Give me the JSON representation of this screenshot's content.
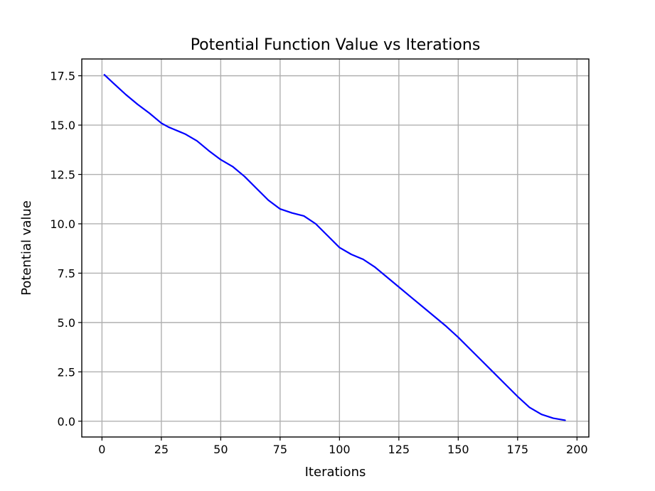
{
  "chart_data": {
    "type": "line",
    "title": "Potential Function Value vs Iterations",
    "xlabel": "Iterations",
    "ylabel": "Potential value",
    "xlim": [
      -8.5,
      205
    ],
    "ylim": [
      -0.8,
      18.35
    ],
    "xticks": [
      0,
      25,
      50,
      75,
      100,
      125,
      150,
      175,
      200
    ],
    "xtick_labels": [
      "0",
      "25",
      "50",
      "75",
      "100",
      "125",
      "150",
      "175",
      "200"
    ],
    "yticks": [
      0.0,
      2.5,
      5.0,
      7.5,
      10.0,
      12.5,
      15.0,
      17.5
    ],
    "ytick_labels": [
      "0.0",
      "2.5",
      "5.0",
      "7.5",
      "10.0",
      "12.5",
      "15.0",
      "17.5"
    ],
    "grid": true,
    "series": [
      {
        "color": "#0000ff",
        "x": [
          1,
          5,
          10,
          15,
          20,
          25,
          28,
          30,
          35,
          40,
          45,
          50,
          55,
          60,
          65,
          70,
          75,
          80,
          85,
          90,
          95,
          100,
          105,
          110,
          115,
          120,
          125,
          130,
          135,
          140,
          145,
          150,
          155,
          160,
          165,
          170,
          175,
          180,
          185,
          190,
          195
        ],
        "y": [
          17.55,
          17.1,
          16.55,
          16.05,
          15.6,
          15.1,
          14.9,
          14.8,
          14.55,
          14.2,
          13.7,
          13.25,
          12.9,
          12.4,
          11.8,
          11.2,
          10.75,
          10.55,
          10.4,
          10.0,
          9.4,
          8.8,
          8.45,
          8.2,
          7.8,
          7.3,
          6.8,
          6.3,
          5.8,
          5.3,
          4.8,
          4.25,
          3.65,
          3.05,
          2.45,
          1.85,
          1.25,
          0.7,
          0.35,
          0.15,
          0.05
        ]
      }
    ]
  }
}
